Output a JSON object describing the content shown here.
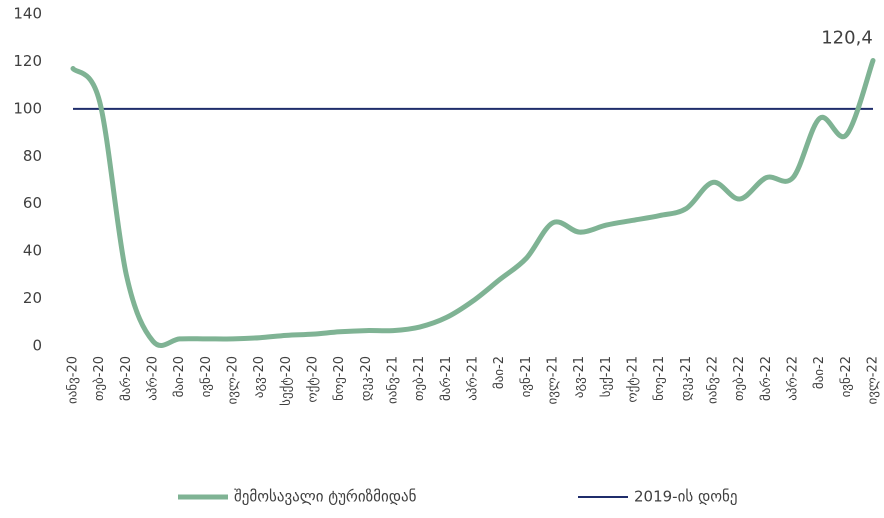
{
  "chart_data": {
    "type": "line",
    "categories": [
      "იანვ-20",
      "თებ-20",
      "მარ-20",
      "აპრ-20",
      "მაი-20",
      "ივნ-20",
      "ივლ-20",
      "აგვ-20",
      "სექტ-20",
      "ოქტ-20",
      "ნოე-20",
      "დეკ-20",
      "იანვ-21",
      "თებ-21",
      "მარ-21",
      "აპრ-21",
      "მაი-2",
      "ივნ-21",
      "ივლ-21",
      "აგვ-21",
      "სექ-21",
      "ოქტ-21",
      "ნოე-21",
      "დეკ-21",
      "იანვ-22",
      "თებ-22",
      "მარ-22",
      "აპრ-22",
      "მაი-2",
      "ივნ-22",
      "ივლ-22"
    ],
    "series": [
      {
        "name": "შემოსავალი ტურიზმიდან",
        "color": "#7fb394",
        "values": [
          117,
          103,
          30,
          2,
          3,
          3,
          3,
          3.5,
          4.5,
          5,
          6,
          6.5,
          6.5,
          8,
          12,
          19,
          28,
          37,
          52,
          48,
          51,
          53,
          55,
          58,
          69,
          62,
          71,
          71,
          96,
          89,
          120.4
        ],
        "value_labels": [
          null,
          null,
          null,
          null,
          null,
          null,
          null,
          null,
          null,
          null,
          null,
          null,
          null,
          null,
          null,
          null,
          null,
          null,
          null,
          null,
          null,
          null,
          null,
          null,
          null,
          null,
          null,
          null,
          null,
          null,
          "120,4"
        ]
      }
    ],
    "reference_line": {
      "name": "2019-ის დონე",
      "value": 100,
      "color": "#1f2d6b"
    },
    "ylim": [
      0,
      140
    ],
    "yticks": [
      0,
      20,
      40,
      60,
      80,
      100,
      120,
      140
    ],
    "grid": false
  }
}
